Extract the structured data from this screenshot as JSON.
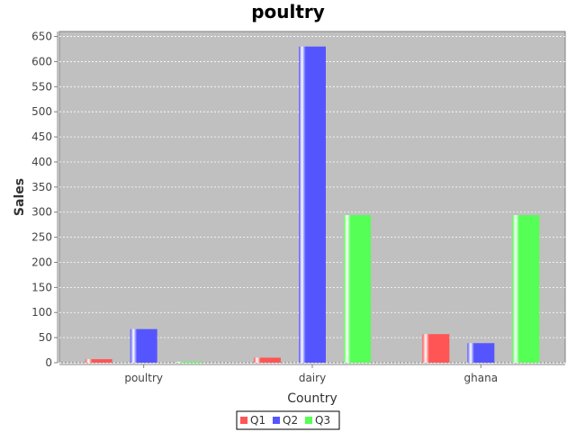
{
  "chart_data": {
    "type": "bar",
    "title": "poultry",
    "xlabel": "Country",
    "ylabel": "Sales",
    "categories": [
      "poultry",
      "dairy",
      "ghana"
    ],
    "series": [
      {
        "name": "Q1",
        "values": [
          7,
          10,
          57
        ],
        "color": "#ff5555"
      },
      {
        "name": "Q2",
        "values": [
          67,
          630,
          39
        ],
        "color": "#5555ff"
      },
      {
        "name": "Q3",
        "values": [
          2,
          294,
          294
        ],
        "color": "#55ff55"
      }
    ],
    "ylim": [
      0,
      660
    ],
    "yticks": [
      0,
      50,
      100,
      150,
      200,
      250,
      300,
      350,
      400,
      450,
      500,
      550,
      600,
      650
    ],
    "grid": true,
    "legend": "bottom",
    "plot_background": "#c0c0c0"
  }
}
